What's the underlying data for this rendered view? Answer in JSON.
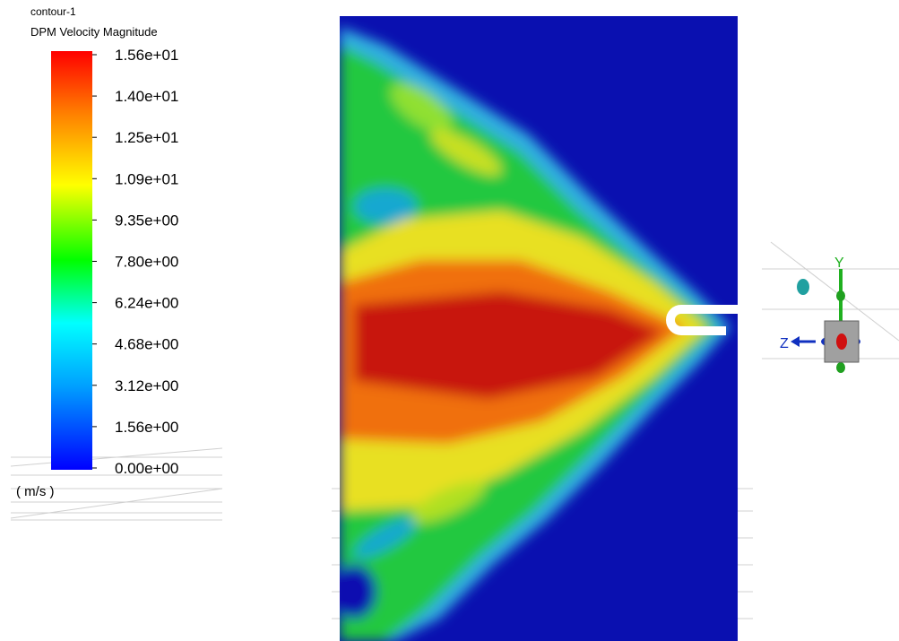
{
  "legend": {
    "title": "contour-1",
    "subtitle": "DPM Velocity Magnitude",
    "labels": [
      "1.56e+01",
      "1.40e+01",
      "1.25e+01",
      "1.09e+01",
      "9.35e+00",
      "7.80e+00",
      "6.24e+00",
      "4.68e+00",
      "3.12e+00",
      "1.56e+00",
      "0.00e+00"
    ],
    "units": "( m/s )"
  },
  "triad": {
    "y_label": "Y",
    "z_label": "Z"
  }
}
